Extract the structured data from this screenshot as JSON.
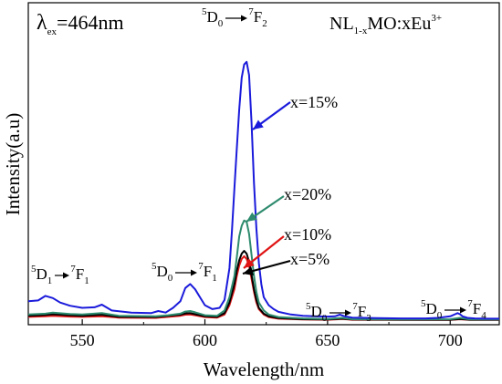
{
  "chart_data": {
    "type": "line",
    "xlabel": "Wavelength/nm",
    "ylabel": "Intensity(a.u)",
    "xlim": [
      528,
      720
    ],
    "ylim": [
      0,
      1.0
    ],
    "x_ticks": [
      "550",
      "600",
      "650",
      "700"
    ],
    "y_ticks": [],
    "excitation_label": {
      "symbol": "λ",
      "sub": "ex",
      "text": "=464nm"
    },
    "sample_label": {
      "a": "NL",
      "sub": "1-x",
      "b": "MO:xEu",
      "sup": "3+"
    },
    "transitions": [
      {
        "id": "d1f1",
        "pre": "5",
        "a": "D",
        "a_sub": "1",
        "post": "7",
        "b": "F",
        "b_sub": "1"
      },
      {
        "id": "d0f1",
        "pre": "5",
        "a": "D",
        "a_sub": "0",
        "post": "7",
        "b": "F",
        "b_sub": "1"
      },
      {
        "id": "d0f2",
        "pre": "5",
        "a": "D",
        "a_sub": "0",
        "post": "7",
        "b": "F",
        "b_sub": "2"
      },
      {
        "id": "d0f3",
        "pre": "5",
        "a": "D",
        "a_sub": "0",
        "post": "7",
        "b": "F",
        "b_sub": "3"
      },
      {
        "id": "d0f4",
        "pre": "5",
        "a": "D",
        "a_sub": "0",
        "post": "7",
        "b": "F",
        "b_sub": "4"
      }
    ],
    "series": [
      {
        "name": "x=15%",
        "color": "#1a1adb",
        "x": [
          528,
          532,
          535,
          538,
          541,
          545,
          550,
          555,
          558,
          562,
          570,
          578,
          581,
          584,
          587,
          590,
          592,
          594,
          596,
          598,
          600,
          603,
          606,
          608,
          610,
          611,
          612,
          613,
          614,
          615,
          616,
          617,
          618,
          619,
          620,
          621,
          622,
          623,
          624,
          626,
          628,
          630,
          635,
          640,
          645,
          650,
          653,
          655,
          657,
          660,
          665,
          670,
          680,
          690,
          695,
          700,
          702,
          703,
          704,
          705,
          707,
          710,
          715,
          720
        ],
        "y": [
          0.075,
          0.078,
          0.095,
          0.087,
          0.07,
          0.058,
          0.05,
          0.052,
          0.062,
          0.04,
          0.032,
          0.03,
          0.038,
          0.032,
          0.05,
          0.075,
          0.125,
          0.14,
          0.12,
          0.09,
          0.06,
          0.045,
          0.05,
          0.08,
          0.2,
          0.34,
          0.5,
          0.65,
          0.8,
          0.92,
          0.97,
          0.98,
          0.93,
          0.75,
          0.52,
          0.35,
          0.22,
          0.14,
          0.09,
          0.06,
          0.045,
          0.035,
          0.025,
          0.02,
          0.018,
          0.017,
          0.018,
          0.024,
          0.018,
          0.013,
          0.012,
          0.011,
          0.01,
          0.01,
          0.012,
          0.018,
          0.026,
          0.03,
          0.026,
          0.018,
          0.012,
          0.01,
          0.009,
          0.009
        ]
      },
      {
        "name": "x=20%",
        "color": "#2e8b6e",
        "x": [
          528,
          535,
          538,
          545,
          550,
          558,
          565,
          580,
          585,
          590,
          592,
          594,
          596,
          600,
          605,
          608,
          610,
          612,
          613,
          614,
          615,
          616,
          617,
          618,
          619,
          620,
          621,
          622,
          624,
          626,
          630,
          640,
          650,
          656,
          660,
          680,
          700,
          704,
          708,
          720
        ],
        "y": [
          0.025,
          0.028,
          0.032,
          0.027,
          0.025,
          0.03,
          0.02,
          0.018,
          0.022,
          0.028,
          0.036,
          0.038,
          0.033,
          0.022,
          0.02,
          0.04,
          0.09,
          0.17,
          0.24,
          0.32,
          0.36,
          0.38,
          0.375,
          0.33,
          0.25,
          0.17,
          0.11,
          0.07,
          0.04,
          0.025,
          0.015,
          0.01,
          0.008,
          0.012,
          0.007,
          0.006,
          0.007,
          0.012,
          0.006,
          0.006
        ]
      },
      {
        "name": "x=10%",
        "color": "#e01414",
        "x": [
          528,
          535,
          538,
          545,
          550,
          558,
          565,
          580,
          590,
          592,
          594,
          596,
          600,
          605,
          608,
          610,
          612,
          613,
          614,
          615,
          616,
          617,
          618,
          619,
          620,
          621,
          622,
          624,
          626,
          630,
          640,
          650,
          656,
          660,
          680,
          700,
          704,
          708,
          720
        ],
        "y": [
          0.016,
          0.018,
          0.02,
          0.017,
          0.016,
          0.018,
          0.013,
          0.012,
          0.02,
          0.024,
          0.025,
          0.022,
          0.015,
          0.013,
          0.025,
          0.06,
          0.12,
          0.17,
          0.21,
          0.235,
          0.245,
          0.235,
          0.21,
          0.16,
          0.11,
          0.07,
          0.045,
          0.025,
          0.015,
          0.009,
          0.006,
          0.005,
          0.008,
          0.005,
          0.004,
          0.004,
          0.007,
          0.004,
          0.004
        ]
      },
      {
        "name": "x=5%",
        "color": "#000000",
        "x": [
          528,
          535,
          538,
          545,
          550,
          558,
          565,
          580,
          590,
          592,
          594,
          596,
          600,
          605,
          608,
          610,
          612,
          613,
          614,
          615,
          616,
          617,
          618,
          619,
          620,
          621,
          622,
          624,
          626,
          630,
          640,
          650,
          656,
          660,
          680,
          700,
          704,
          708,
          720
        ],
        "y": [
          0.02,
          0.023,
          0.026,
          0.022,
          0.02,
          0.024,
          0.016,
          0.015,
          0.024,
          0.029,
          0.03,
          0.026,
          0.018,
          0.016,
          0.03,
          0.07,
          0.14,
          0.19,
          0.23,
          0.255,
          0.265,
          0.255,
          0.225,
          0.175,
          0.12,
          0.08,
          0.05,
          0.028,
          0.018,
          0.011,
          0.007,
          0.006,
          0.009,
          0.006,
          0.005,
          0.005,
          0.008,
          0.005,
          0.005
        ]
      }
    ]
  }
}
